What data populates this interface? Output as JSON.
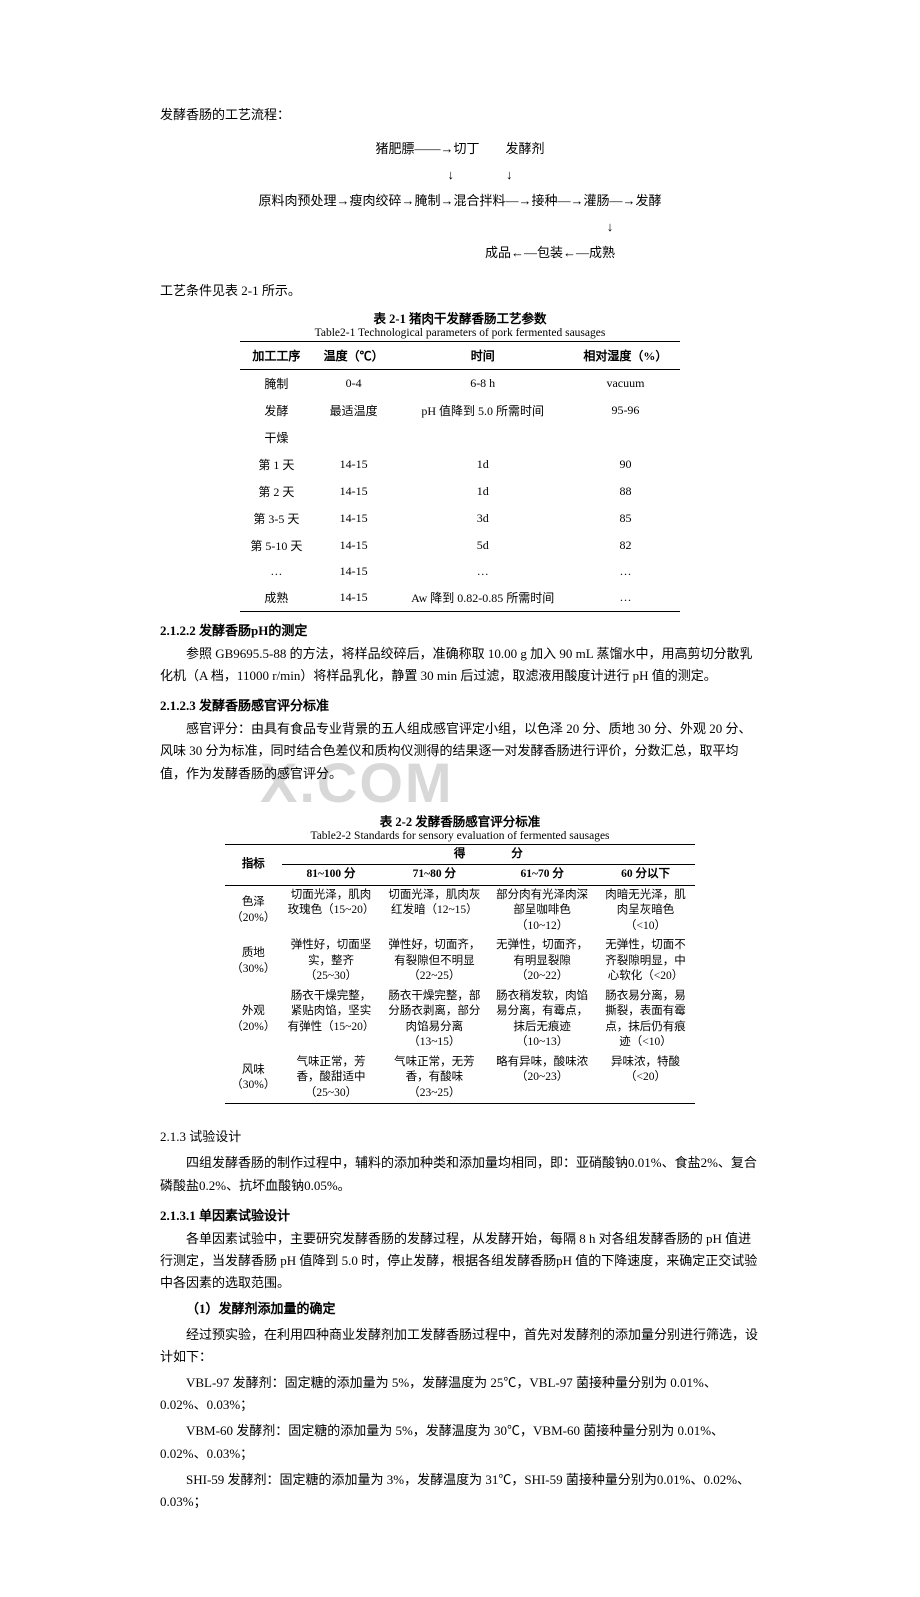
{
  "intro": "发酵香肠的工艺流程：",
  "flow": {
    "line1": "猪肥膘——→切丁　　发酵剂",
    "line2": "↓　　　　↓",
    "line3": "原料肉预处理→瘦肉绞碎→腌制→混合拌料—→接种—→灌肠—→发酵",
    "line4": "↓",
    "line5": "成品←—包装←—成熟"
  },
  "beforeT1": "工艺条件见表 2-1 所示。",
  "t1": {
    "cap_cn": "表 2-1  猪肉干发酵香肠工艺参数",
    "cap_en": "Table2-1 Technological parameters of pork fermented sausages",
    "head": [
      "加工工序",
      "温度（℃）",
      "时间",
      "相对湿度（%）"
    ],
    "rows": [
      [
        "腌制",
        "0-4",
        "6-8 h",
        "vacuum"
      ],
      [
        "发酵",
        "最适温度",
        "pH 值降到 5.0 所需时间",
        "95-96"
      ],
      [
        "干燥",
        "",
        "",
        ""
      ],
      [
        "第 1 天",
        "14-15",
        "1d",
        "90"
      ],
      [
        "第 2 天",
        "14-15",
        "1d",
        "88"
      ],
      [
        "第 3-5 天",
        "14-15",
        "3d",
        "85"
      ],
      [
        "第 5-10 天",
        "14-15",
        "5d",
        "82"
      ],
      [
        "…",
        "14-15",
        "…",
        "…"
      ],
      [
        "成熟",
        "14-15",
        "Aw 降到 0.82-0.85 所需时间",
        "…"
      ]
    ]
  },
  "s2122": {
    "h": "2.1.2.2  发酵香肠pH的测定",
    "p": "参照 GB9695.5-88 的方法，将样品绞碎后，准确称取 10.00 g 加入 90 mL 蒸馏水中，用高剪切分散乳化机（A 档，11000 r/min）将样品乳化，静置 30 min 后过滤，取滤液用酸度计进行 pH 值的测定。"
  },
  "s2123": {
    "h": "2.1.2.3  发酵香肠感官评分标准",
    "p": "感官评分：由具有食品专业背景的五人组成感官评定小组，以色泽 20 分、质地 30 分、外观 20 分、风味 30 分为标准，同时结合色差仪和质构仪测得的结果逐一对发酵香肠进行评价，分数汇总，取平均值，作为发酵香肠的感官评分。"
  },
  "t2": {
    "cap_cn": "表 2-2  发酵香肠感官评分标准",
    "cap_en": "Table2-2 Standards for sensory evaluation of fermented sausages",
    "head_top": "得　　　　分",
    "head_idx": "指标",
    "head_cols": [
      "81~100 分",
      "71~80 分",
      "61~70 分",
      "60 分以下"
    ],
    "rows": [
      {
        "idx": "色泽（20%）",
        "c": [
          "切面光泽，肌肉玫瑰色（15~20）",
          "切面光泽，肌肉灰红发暗（12~15）",
          "部分肉有光泽肉深部呈咖啡色（10~12）",
          "肉暗无光泽，肌肉呈灰暗色（<10）"
        ]
      },
      {
        "idx": "质地（30%）",
        "c": [
          "弹性好，切面坚实，整齐（25~30）",
          "弹性好，切面齐，有裂隙但不明显（22~25）",
          "无弹性，切面齐，有明显裂隙（20~22）",
          "无弹性，切面不齐裂隙明显，中心软化（<20）"
        ]
      },
      {
        "idx": "外观（20%）",
        "c": [
          "肠衣干燥完整，紧贴肉馅，坚实有弹性（15~20）",
          "肠衣干燥完整，部分肠衣剥离，部分肉馅易分离（13~15）",
          "肠衣稍发软，肉馅易分离，有霉点，抹后无痕迹（10~13）",
          "肠衣易分离，易撕裂，表面有霉点，抹后仍有痕迹（<10）"
        ]
      },
      {
        "idx": "风味（30%）",
        "c": [
          "气味正常，芳香，酸甜适中（25~30）",
          "气味正常，无芳香，有酸味（23~25）",
          "略有异味，酸味浓（20~23）",
          "异味浓，特酸（<20）"
        ]
      }
    ]
  },
  "s213": {
    "h": "2.1.3  试验设计",
    "p": "四组发酵香肠的制作过程中，辅料的添加种类和添加量均相同，即：亚硝酸钠0.01%、食盐2%、复合磷酸盐0.2%、抗坏血酸钠0.05%。"
  },
  "s2131": {
    "h": "2.1.3.1  单因素试验设计",
    "p": "各单因素试验中，主要研究发酵香肠的发酵过程，从发酵开始，每隔 8 h 对各组发酵香肠的 pH 值进行测定，当发酵香肠 pH 值降到 5.0 时，停止发酵，根据各组发酵香肠pH 值的下降速度，来确定正交试验中各因素的选取范围。",
    "sub_h": "（1）发酵剂添加量的确定",
    "sub_p1": "经过预实验，在利用四种商业发酵剂加工发酵香肠过程中，首先对发酵剂的添加量分别进行筛选，设计如下：",
    "sub_p2": "VBL-97 发酵剂：固定糖的添加量为 5%，发酵温度为 25℃，VBL-97 菌接种量分别为 0.01%、0.02%、0.03%；",
    "sub_p3": "VBM-60 发酵剂：固定糖的添加量为 5%，发酵温度为 30℃，VBM-60 菌接种量分别为 0.01%、0.02%、0.03%；",
    "sub_p4": "SHI-59 发酵剂：固定糖的添加量为 3%，发酵温度为 31℃，SHI-59 菌接种量分别为0.01%、0.02%、0.03%；"
  },
  "watermark": "X.COM"
}
